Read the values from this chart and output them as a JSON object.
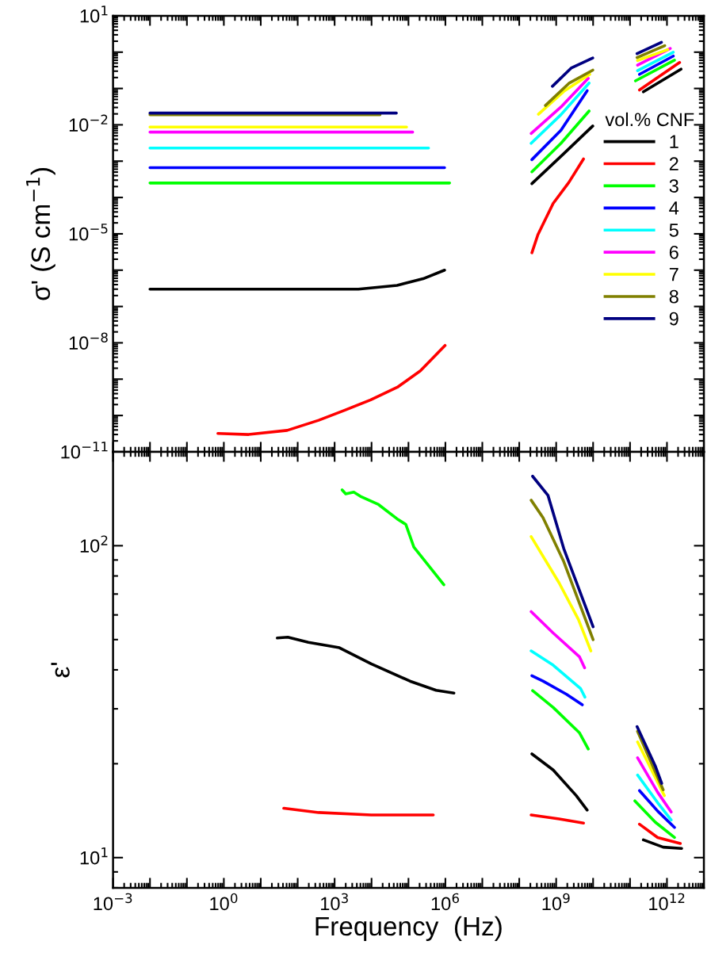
{
  "chart_data": [
    {
      "type": "line",
      "ylabel": "σ' (S cm$^{−1}$)",
      "log": "xy",
      "tick_labels": "y",
      "legend": "right",
      "legend_title": "vol.% CNF",
      "xlim": [
        0.001,
        10000000000000.0
      ],
      "ylim": [
        1e-11,
        10
      ],
      "xticks": [
        {
          "value": 0.001,
          "label": null
        },
        {
          "value": 0.01,
          "label": null
        },
        {
          "value": 0.1,
          "label": null
        },
        {
          "value": 1,
          "label": null
        },
        {
          "value": 10,
          "label": null
        },
        {
          "value": 100,
          "label": null
        },
        {
          "value": 1000.0,
          "label": null
        },
        {
          "value": 10000.0,
          "label": null
        },
        {
          "value": 100000.0,
          "label": null
        },
        {
          "value": 1000000.0,
          "label": null
        },
        {
          "value": 10000000.0,
          "label": null
        },
        {
          "value": 100000000.0,
          "label": null
        },
        {
          "value": 1000000000.0,
          "label": null
        },
        {
          "value": 10000000000.0,
          "label": null
        },
        {
          "value": 100000000000.0,
          "label": null
        },
        {
          "value": 1000000000000.0,
          "label": null
        },
        {
          "value": 10000000000000.0,
          "label": null
        }
      ],
      "yticks": [
        {
          "value": 1e-11,
          "label": "10$^{−11}$"
        },
        {
          "value": 1e-10,
          "label": null
        },
        {
          "value": 1e-09,
          "label": null
        },
        {
          "value": 1e-08,
          "label": "10$^{−8}$"
        },
        {
          "value": 1e-07,
          "label": null
        },
        {
          "value": 1e-06,
          "label": null
        },
        {
          "value": 1e-05,
          "label": "10$^{−5}$"
        },
        {
          "value": 0.0001,
          "label": null
        },
        {
          "value": 0.001,
          "label": null
        },
        {
          "value": 0.01,
          "label": "10$^{−2}$"
        },
        {
          "value": 0.1,
          "label": null
        },
        {
          "value": 1,
          "label": null
        },
        {
          "value": 10,
          "label": "10$^{1}$"
        }
      ],
      "series": [
        {
          "name": "1",
          "color": "#000000",
          "x": [
            0.01,
            4400.0,
            49000.0,
            250000.0,
            950000.0,
            30000000.0,
            220000000.0,
            1600000000.0,
            9800000000.0,
            40000000000.0,
            230000000000.0,
            2400000000000.0
          ],
          "values": [
            3e-07,
            3e-07,
            3.8e-07,
            5.8e-07,
            1e-06,
            null,
            0.00024,
            0.0016,
            0.0093,
            null,
            0.081,
            0.34
          ]
        },
        {
          "name": "2",
          "color": "#ff0000",
          "x": [
            0.69,
            4.7,
            52,
            370,
            1900.0,
            9500.0,
            50000.0,
            210000.0,
            980000.0,
            30000000.0,
            220000000.0,
            320000000.0,
            830000000.0,
            2200000000.0,
            5500000000.0,
            40000000000.0,
            180000000000.0,
            2200000000000.0
          ],
          "values": [
            3.2e-11,
            3e-11,
            3.9e-11,
            7.4e-11,
            1.4e-10,
            2.7e-10,
            6e-10,
            1.7e-09,
            8.5e-09,
            null,
            3e-06,
            9.5e-06,
            6.9e-05,
            0.00026,
            0.00115,
            null,
            0.091,
            0.52
          ]
        },
        {
          "name": "3",
          "color": "#00ff00",
          "x": [
            0.01,
            1300000.0,
            30000000.0,
            220000000.0,
            1350000000.0,
            7800000000.0,
            40000000000.0,
            140000000000.0,
            1600000000000.0
          ],
          "values": [
            0.00025,
            0.00025,
            null,
            0.00051,
            0.0031,
            0.024,
            null,
            0.162,
            0.6
          ]
        },
        {
          "name": "4",
          "color": "#0000ff",
          "x": [
            0.01,
            950000.0,
            30000000.0,
            220000000.0,
            1350000000.0,
            6900000000.0,
            40000000000.0,
            180000000000.0,
            1480000000000.0
          ],
          "values": [
            0.00066,
            0.00066,
            null,
            0.0011,
            0.0071,
            0.087,
            null,
            0.245,
            0.78
          ]
        },
        {
          "name": "5",
          "color": "#00ffff",
          "x": [
            0.01,
            350000.0,
            30000000.0,
            210000000.0,
            1350000000.0,
            7800000000.0,
            40000000000.0,
            160000000000.0,
            1480000000000.0
          ],
          "values": [
            0.0023,
            0.0023,
            null,
            0.0031,
            0.019,
            0.141,
            null,
            0.31,
            1.0
          ]
        },
        {
          "name": "6",
          "color": "#ff00ff",
          "x": [
            0.01,
            130000.0,
            30000000.0,
            210000000.0,
            1350000000.0,
            7400000000.0,
            40000000000.0,
            160000000000.0,
            1230000000000.0
          ],
          "values": [
            0.0063,
            0.0063,
            null,
            0.0058,
            0.031,
            0.19,
            null,
            0.44,
            1.26
          ]
        },
        {
          "name": "7",
          "color": "#ffff00",
          "x": [
            0.01,
            89000.0,
            30000000.0,
            330000000.0,
            1600000000.0,
            8100000000.0,
            40000000000.0,
            160000000000.0,
            1050000000000.0
          ],
          "values": [
            0.0087,
            0.0087,
            null,
            0.0195,
            0.083,
            0.245,
            null,
            0.59,
            1.17
          ]
        },
        {
          "name": "8",
          "color": "#808000",
          "x": [
            0.01,
            17000.0,
            30000000.0,
            510000000.0,
            2200000000.0,
            9800000000.0,
            40000000000.0,
            155000000000.0,
            870000000000.0
          ],
          "values": [
            0.019,
            0.019,
            null,
            0.034,
            0.138,
            0.32,
            null,
            0.71,
            1.51
          ]
        },
        {
          "name": "9",
          "color": "#000080",
          "x": [
            0.01,
            47000.0,
            30000000.0,
            790000000.0,
            2600000000.0,
            9800000000.0,
            40000000000.0,
            155000000000.0,
            710000000000.0
          ],
          "values": [
            0.021,
            0.021,
            null,
            0.115,
            0.37,
            0.69,
            null,
            0.91,
            1.86
          ]
        }
      ]
    },
    {
      "type": "line",
      "xlabel": "Frequency  (Hz)",
      "ylabel": "ε'",
      "log": "xy",
      "xlim": [
        0.001,
        10000000000000.0
      ],
      "ylim": [
        8,
        200
      ],
      "xticks": [
        {
          "value": 0.001,
          "label": "10$^{−3}$"
        },
        {
          "value": 0.01,
          "label": null
        },
        {
          "value": 0.1,
          "label": null
        },
        {
          "value": 1,
          "label": "10$^{0}$"
        },
        {
          "value": 10,
          "label": null
        },
        {
          "value": 100,
          "label": null
        },
        {
          "value": 1000.0,
          "label": "10$^{3}$"
        },
        {
          "value": 10000.0,
          "label": null
        },
        {
          "value": 100000.0,
          "label": null
        },
        {
          "value": 1000000.0,
          "label": "10$^{6}$"
        },
        {
          "value": 10000000.0,
          "label": null
        },
        {
          "value": 100000000.0,
          "label": null
        },
        {
          "value": 1000000000.0,
          "label": "10$^{9}$"
        },
        {
          "value": 10000000000.0,
          "label": null
        },
        {
          "value": 100000000000.0,
          "label": null
        },
        {
          "value": 1000000000000.0,
          "label": "10$^{12}$"
        },
        {
          "value": 10000000000000.0,
          "label": null
        }
      ],
      "yticks": [
        {
          "value": 10,
          "label": "10$^{1}$"
        },
        {
          "value": 100,
          "label": "10$^{2}$"
        }
      ],
      "series": [
        {
          "color": "#000000",
          "x": [
            28,
            54,
            195,
            1350.0,
            9800.0,
            110000.0,
            560000.0,
            1700000.0,
            30000000.0,
            220000000.0,
            830000000.0,
            3500000000.0,
            6900000000.0,
            40000000000.0,
            230000000000.0,
            790000000000.0,
            2500000000000.0
          ],
          "values": [
            50.6,
            50.9,
            49,
            47.1,
            41.8,
            36.8,
            34.4,
            33.7,
            null,
            21.5,
            19.1,
            15.8,
            14.2,
            null,
            11.4,
            10.8,
            10.7
          ]
        },
        {
          "color": "#ff0000",
          "x": [
            42,
            370,
            9800.0,
            470000.0,
            30000000.0,
            210000000.0,
            1200000000.0,
            5500000000.0,
            40000000000.0,
            180000000000.0,
            560000000000.0,
            2300000000000.0
          ],
          "values": [
            14.4,
            13.95,
            13.7,
            13.7,
            null,
            13.7,
            13.3,
            12.9,
            null,
            12.8,
            11.6,
            11.1
          ]
        },
        {
          "color": "#00ff00",
          "x": [
            1600.0,
            2000.0,
            3300.0,
            5000.0,
            15500.0,
            49000.0,
            85000.0,
            140000.0,
            910000.0,
            30000000.0,
            230000000.0,
            830000000.0,
            4300000000.0,
            7400000000.0,
            40000000000.0,
            135000000000.0,
            480000000000.0,
            1600000000000.0
          ],
          "values": [
            151,
            146.6,
            148.6,
            144,
            135.5,
            122,
            117,
            99,
            75,
            null,
            34.3,
            30.3,
            25.1,
            22.3,
            null,
            15.2,
            13.0,
            11.6
          ]
        },
        {
          "color": "#0000ff",
          "x": [
            220000000.0,
            440000000.0,
            1900000000.0,
            5100000000.0,
            40000000000.0,
            180000000000.0,
            560000000000.0,
            1600000000000.0
          ],
          "values": [
            38.3,
            36.8,
            33.4,
            30.9,
            null,
            16.4,
            14.1,
            12.5
          ]
        },
        {
          "color": "#00ffff",
          "x": [
            210000000.0,
            830000000.0,
            4600000000.0,
            6000000000.0,
            40000000000.0,
            160000000000.0,
            560000000000.0,
            1300000000000.0
          ],
          "values": [
            46,
            41.4,
            34.8,
            32.7,
            null,
            18.4,
            15.0,
            13.2
          ]
        },
        {
          "color": "#ff00ff",
          "x": [
            210000000.0,
            830000000.0,
            4300000000.0,
            5900000000.0,
            40000000000.0,
            160000000000.0,
            560000000000.0,
            1300000000000.0
          ],
          "values": [
            61.5,
            52.5,
            44,
            40.6,
            null,
            20.9,
            16.2,
            14.0
          ]
        },
        {
          "color": "#ffff00",
          "x": [
            210000000.0,
            1200000000.0,
            4000000000.0,
            8700000000.0,
            40000000000.0,
            160000000000.0,
            850000000000.0
          ],
          "values": [
            107,
            76,
            58,
            46,
            null,
            23.5,
            15.8
          ]
        },
        {
          "color": "#808000",
          "x": [
            210000000.0,
            440000000.0,
            1600000000.0,
            10000000000.0,
            40000000000.0,
            160000000000.0,
            790000000000.0
          ],
          "values": [
            140,
            123,
            89,
            50,
            null,
            25.4,
            16.5
          ]
        },
        {
          "color": "#000080",
          "x": [
            230000000.0,
            600000000.0,
            1600000000.0,
            10000000000.0,
            40000000000.0,
            155000000000.0,
            480000000000.0,
            720000000000.0
          ],
          "values": [
            167,
            145,
            98,
            55,
            null,
            26.3,
            19.7,
            17.3
          ]
        }
      ]
    }
  ]
}
